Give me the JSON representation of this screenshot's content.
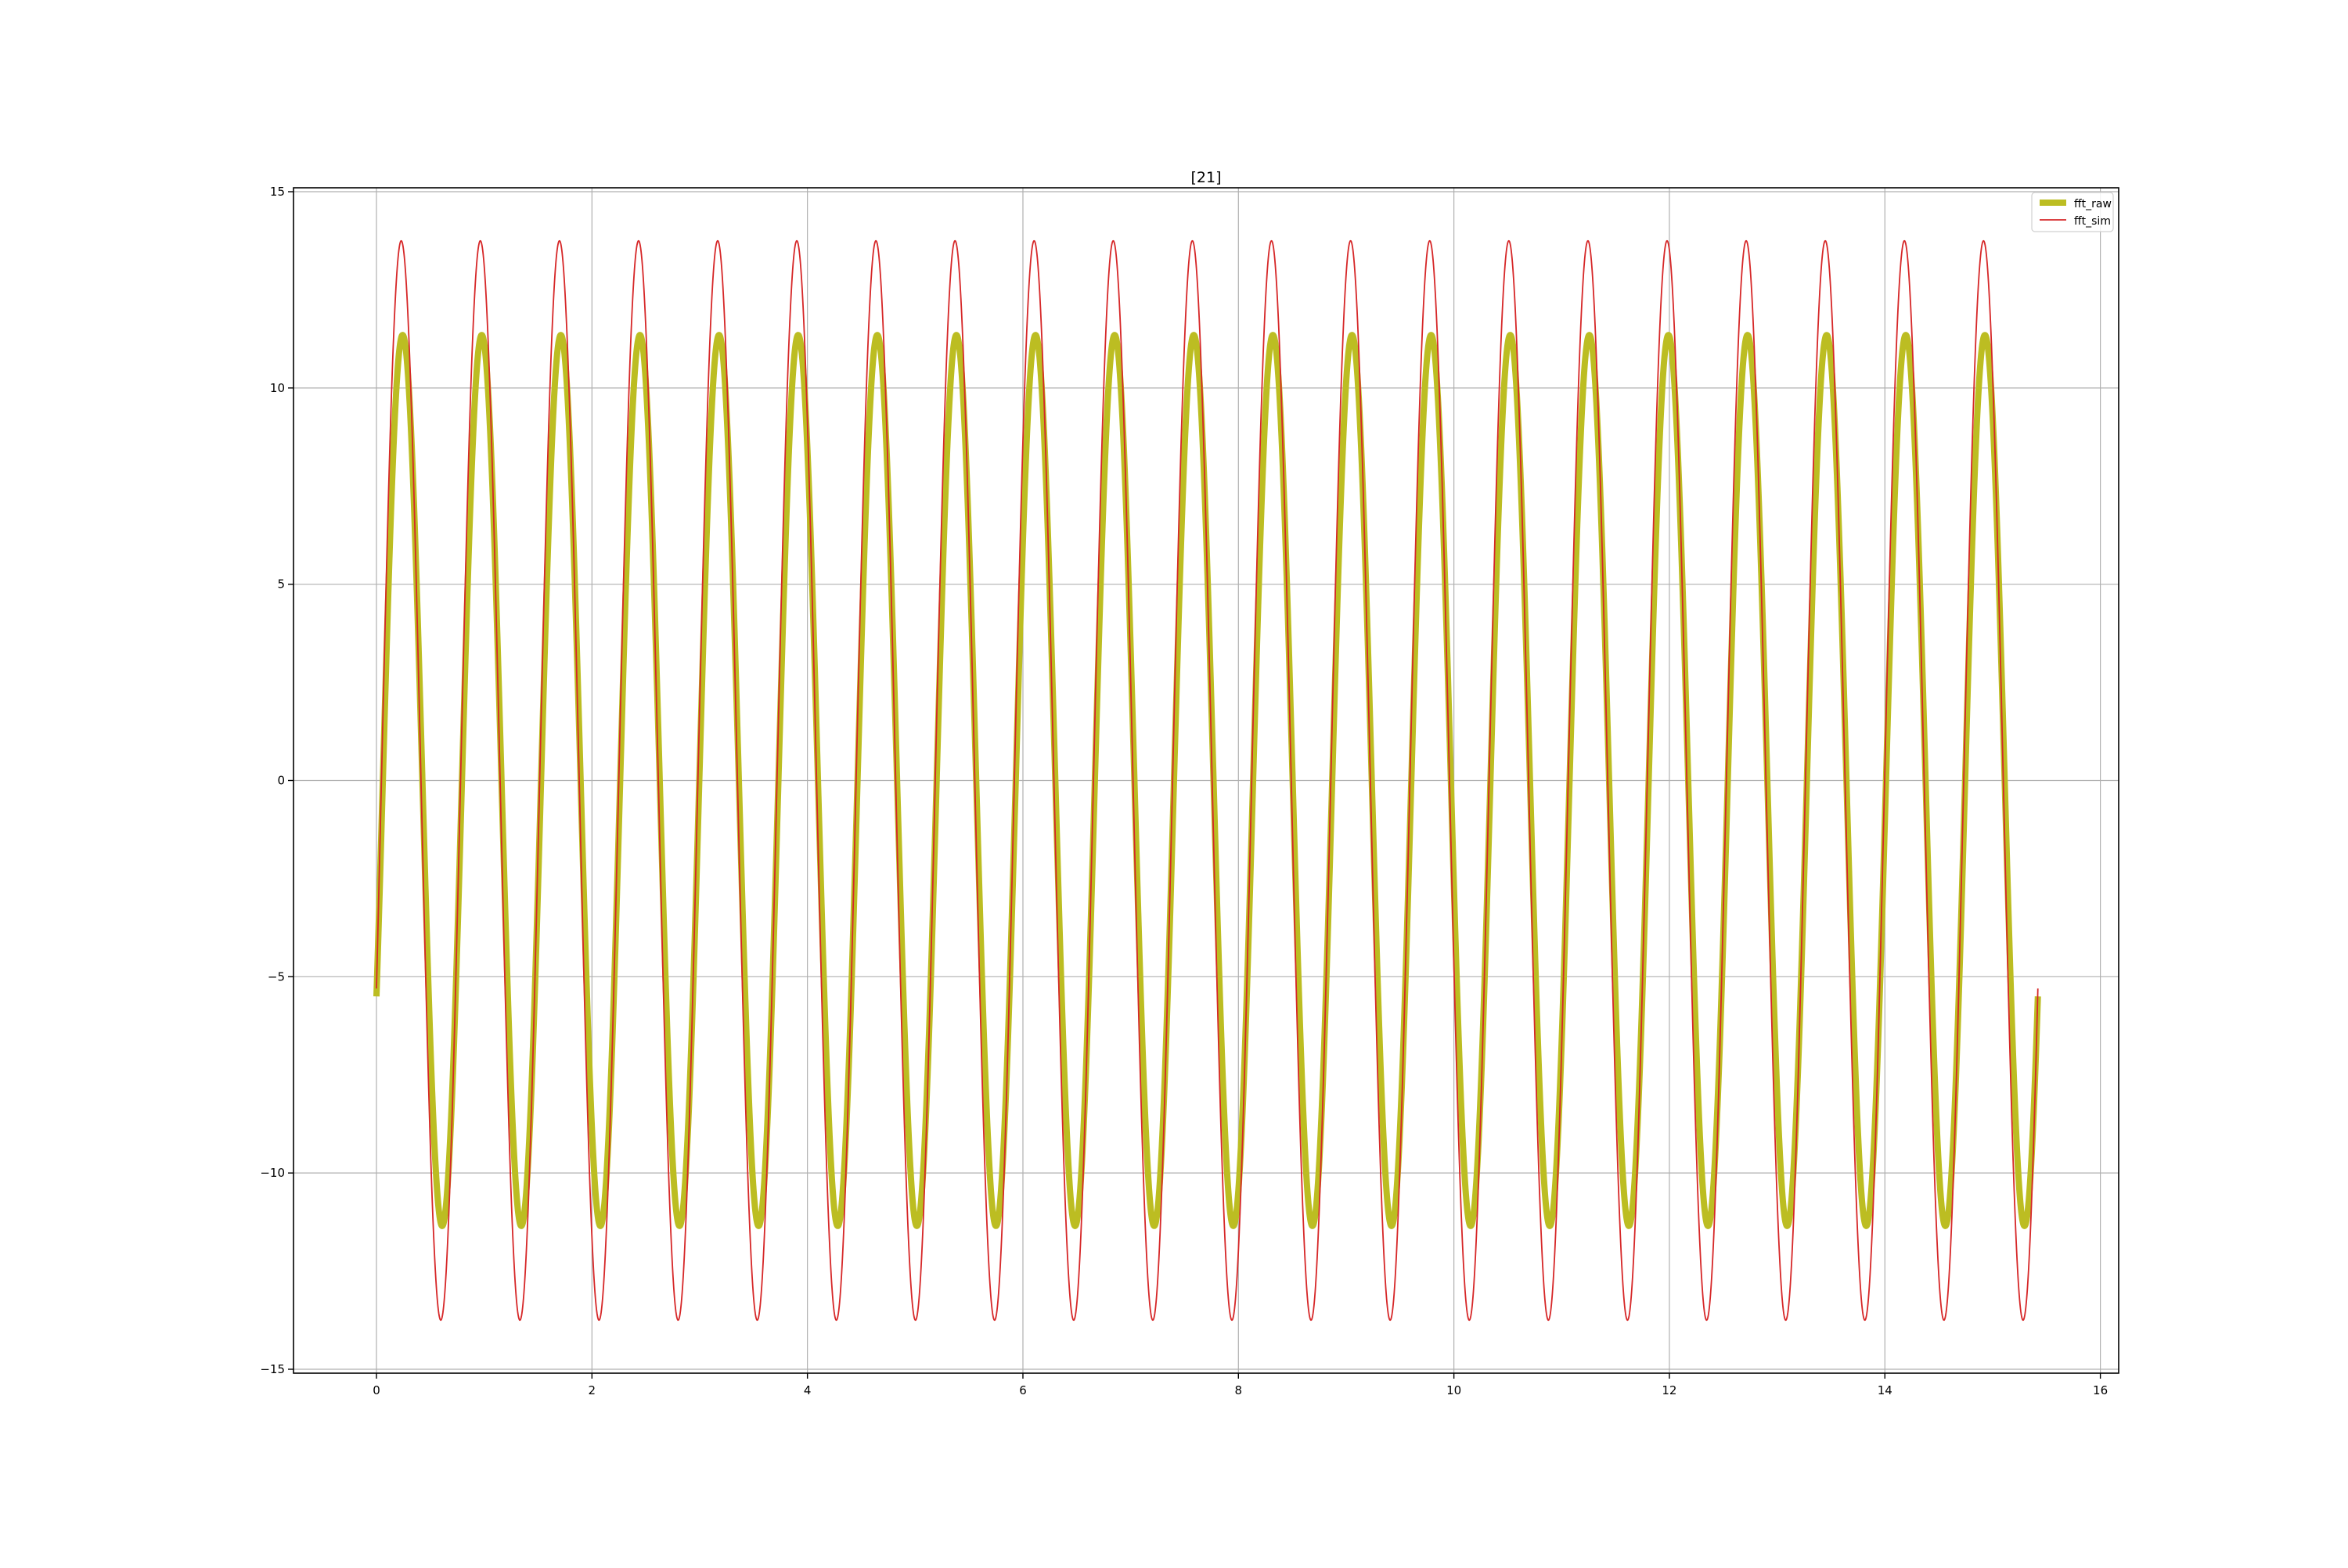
{
  "chart_data": {
    "type": "line",
    "title": "[21]",
    "xlabel": "",
    "ylabel": "",
    "xlim": [
      -0.77,
      16.17
    ],
    "ylim": [
      -15.1,
      15.1
    ],
    "xticks": [
      0,
      2,
      4,
      6,
      8,
      10,
      12,
      14,
      16
    ],
    "xtick_labels": [
      "0",
      "2",
      "4",
      "6",
      "8",
      "10",
      "12",
      "14",
      "16"
    ],
    "yticks": [
      -15,
      -10,
      -5,
      0,
      5,
      10,
      15
    ],
    "ytick_labels": [
      "−15",
      "−10",
      "−5",
      "0",
      "5",
      "10",
      "15"
    ],
    "grid": true,
    "legend_position": "top-right",
    "x_start": 0,
    "x_end": 15.42,
    "cycles": 21,
    "series": [
      {
        "name": "fft_raw",
        "amplitude": 11.35,
        "start_value": -5.5,
        "end_value": -5.5,
        "color": "#bcbd22",
        "style": "thick"
      },
      {
        "name": "fft_sim",
        "amplitude": 13.75,
        "start_value": -5.3,
        "end_value": -5.3,
        "color": "#d62728",
        "style": "thin"
      }
    ]
  }
}
